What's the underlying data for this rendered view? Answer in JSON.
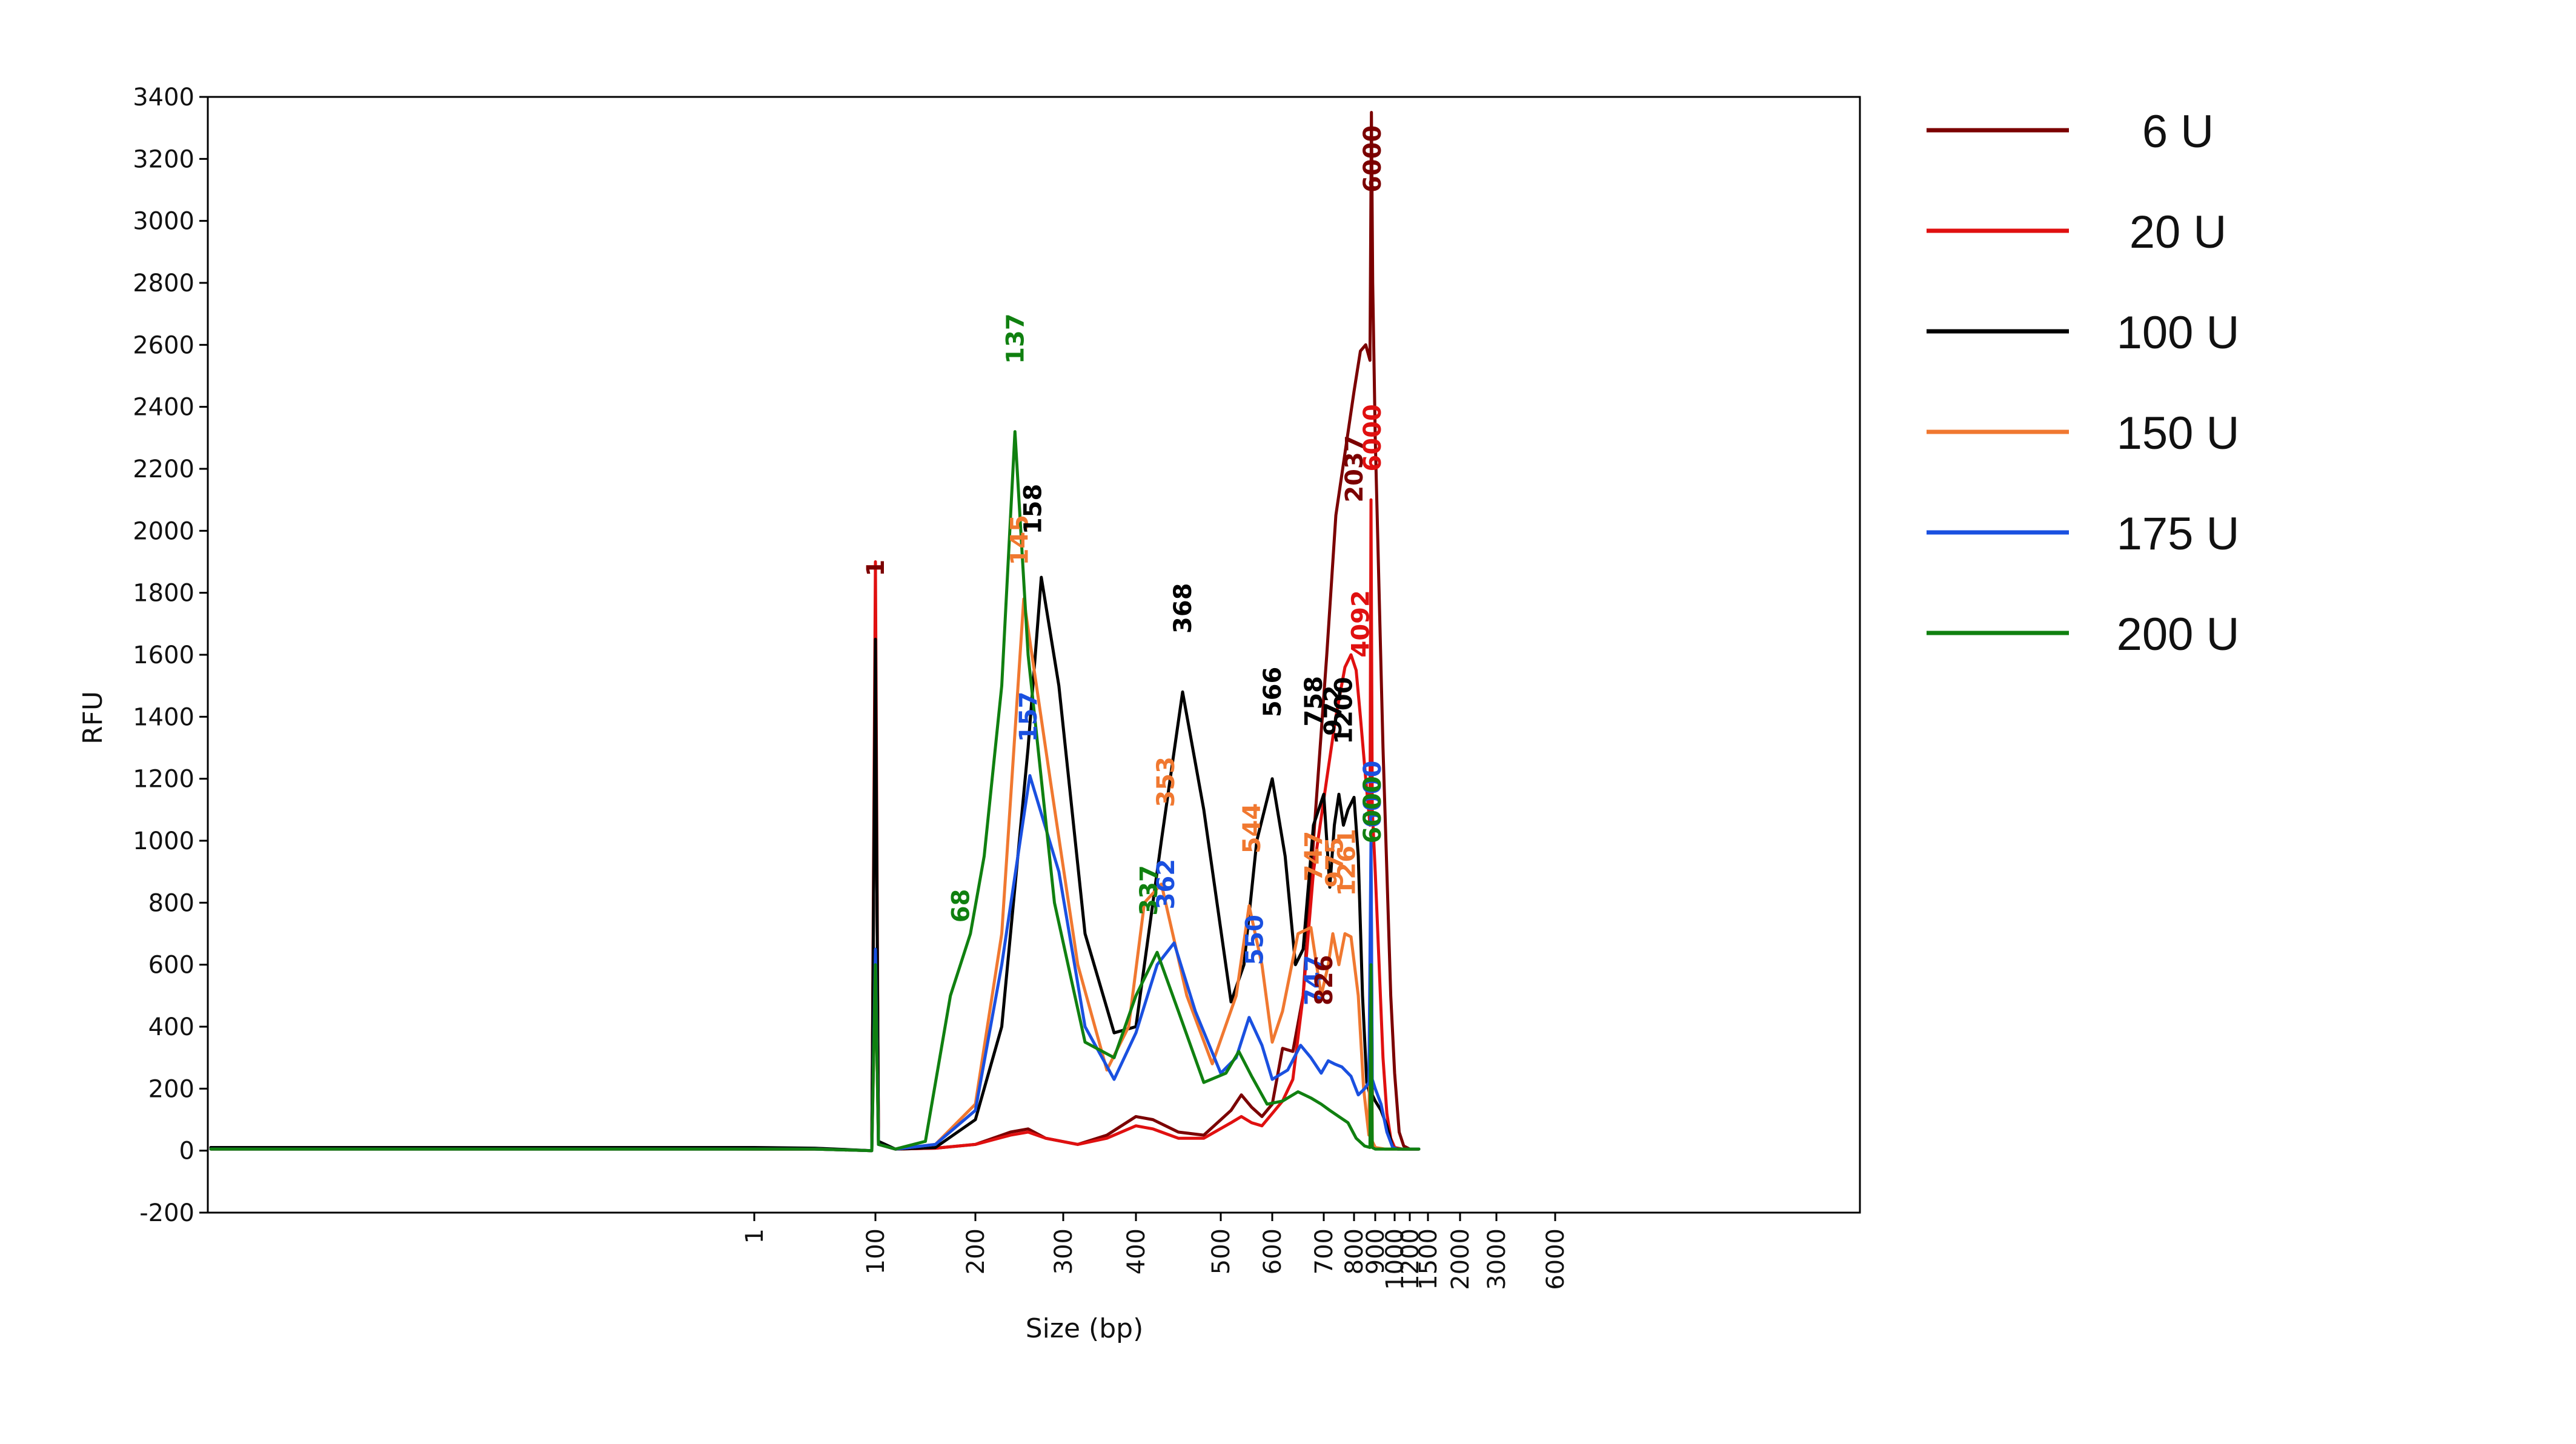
{
  "chart_data": {
    "type": "line",
    "title": "",
    "xlabel": "Size (bp)",
    "ylabel": "RFU",
    "ylim": [
      -200,
      3400
    ],
    "yticks": [
      -200,
      0,
      200,
      400,
      600,
      800,
      1000,
      1200,
      1400,
      1600,
      1800,
      2000,
      2200,
      2400,
      2600,
      2800,
      3000,
      3200,
      3400
    ],
    "xtick_labels": [
      "1",
      "100",
      "200",
      "300",
      "400",
      "500",
      "600",
      "700",
      "800",
      "900",
      "1000",
      "1200",
      "1500",
      "2000",
      "3000",
      "6000"
    ],
    "grid": false,
    "legend_position": "right",
    "series": [
      {
        "name": "6 U",
        "color": "#7b0000",
        "points": [
          [
            -0.05,
            10
          ],
          [
            0.0,
            5
          ],
          [
            0.5,
            5
          ],
          [
            0.97,
            0
          ],
          [
            1.0,
            1650
          ],
          [
            1.03,
            20
          ],
          [
            1.2,
            5
          ],
          [
            1.6,
            8
          ],
          [
            2.0,
            20
          ],
          [
            2.4,
            60
          ],
          [
            2.6,
            70
          ],
          [
            2.8,
            40
          ],
          [
            3.2,
            20
          ],
          [
            3.6,
            50
          ],
          [
            4.0,
            110
          ],
          [
            4.2,
            100
          ],
          [
            4.5,
            60
          ],
          [
            4.8,
            50
          ],
          [
            5.2,
            130
          ],
          [
            5.4,
            180
          ],
          [
            5.6,
            140
          ],
          [
            5.8,
            110
          ],
          [
            6.0,
            150
          ],
          [
            6.2,
            330
          ],
          [
            6.4,
            320
          ],
          [
            6.6,
            500
          ],
          [
            6.8,
            1000
          ],
          [
            7.1,
            1600
          ],
          [
            7.4,
            2050
          ],
          [
            7.7,
            2250
          ],
          [
            8.0,
            2450
          ],
          [
            8.3,
            2580
          ],
          [
            8.55,
            2600
          ],
          [
            8.75,
            2550
          ],
          [
            8.82,
            3350
          ],
          [
            8.88,
            2800
          ],
          [
            9.0,
            2300
          ],
          [
            9.2,
            1800
          ],
          [
            9.4,
            1300
          ],
          [
            9.6,
            900
          ],
          [
            9.8,
            500
          ],
          [
            10.0,
            250
          ],
          [
            10.3,
            60
          ],
          [
            10.6,
            15
          ],
          [
            11.0,
            5
          ],
          [
            11.5,
            5
          ]
        ]
      },
      {
        "name": "20 U",
        "color": "#e01010",
        "points": [
          [
            -0.05,
            5
          ],
          [
            0.0,
            5
          ],
          [
            0.5,
            5
          ],
          [
            0.97,
            0
          ],
          [
            1.0,
            1900
          ],
          [
            1.03,
            20
          ],
          [
            1.2,
            5
          ],
          [
            1.6,
            8
          ],
          [
            2.0,
            20
          ],
          [
            2.4,
            50
          ],
          [
            2.6,
            60
          ],
          [
            2.8,
            40
          ],
          [
            3.2,
            20
          ],
          [
            3.6,
            40
          ],
          [
            4.0,
            80
          ],
          [
            4.2,
            70
          ],
          [
            4.5,
            40
          ],
          [
            4.8,
            40
          ],
          [
            5.2,
            90
          ],
          [
            5.4,
            110
          ],
          [
            5.6,
            90
          ],
          [
            5.8,
            80
          ],
          [
            6.0,
            120
          ],
          [
            6.2,
            160
          ],
          [
            6.4,
            230
          ],
          [
            6.6,
            500
          ],
          [
            6.8,
            900
          ],
          [
            7.1,
            1200
          ],
          [
            7.4,
            1400
          ],
          [
            7.7,
            1560
          ],
          [
            7.9,
            1600
          ],
          [
            8.1,
            1550
          ],
          [
            8.3,
            1400
          ],
          [
            8.55,
            1200
          ],
          [
            8.75,
            1050
          ],
          [
            8.8,
            2100
          ],
          [
            8.86,
            1100
          ],
          [
            9.0,
            900
          ],
          [
            9.2,
            600
          ],
          [
            9.4,
            300
          ],
          [
            9.6,
            120
          ],
          [
            9.8,
            40
          ],
          [
            10.0,
            10
          ],
          [
            10.5,
            5
          ],
          [
            11.5,
            5
          ]
        ]
      },
      {
        "name": "100 U",
        "color": "#000000",
        "points": [
          [
            -0.05,
            10
          ],
          [
            0.0,
            10
          ],
          [
            0.5,
            8
          ],
          [
            0.97,
            0
          ],
          [
            1.0,
            1650
          ],
          [
            1.03,
            30
          ],
          [
            1.2,
            5
          ],
          [
            1.6,
            10
          ],
          [
            2.0,
            100
          ],
          [
            2.3,
            400
          ],
          [
            2.6,
            1300
          ],
          [
            2.75,
            1850
          ],
          [
            2.95,
            1500
          ],
          [
            3.3,
            700
          ],
          [
            3.7,
            380
          ],
          [
            4.0,
            400
          ],
          [
            4.3,
            1000
          ],
          [
            4.55,
            1480
          ],
          [
            4.8,
            1100
          ],
          [
            5.2,
            480
          ],
          [
            5.45,
            600
          ],
          [
            5.7,
            1000
          ],
          [
            6.0,
            1200
          ],
          [
            6.25,
            950
          ],
          [
            6.45,
            600
          ],
          [
            6.6,
            650
          ],
          [
            6.8,
            1050
          ],
          [
            7.0,
            1150
          ],
          [
            7.2,
            850
          ],
          [
            7.35,
            1050
          ],
          [
            7.5,
            1150
          ],
          [
            7.65,
            1050
          ],
          [
            7.8,
            1100
          ],
          [
            8.0,
            1140
          ],
          [
            8.2,
            950
          ],
          [
            8.4,
            500
          ],
          [
            8.6,
            220
          ],
          [
            8.75,
            180
          ],
          [
            8.8,
            950
          ],
          [
            8.86,
            180
          ],
          [
            9.0,
            160
          ],
          [
            9.3,
            130
          ],
          [
            9.6,
            80
          ],
          [
            9.9,
            10
          ],
          [
            10.2,
            5
          ],
          [
            11.5,
            5
          ]
        ]
      },
      {
        "name": "150 U",
        "color": "#f07830",
        "points": [
          [
            -0.05,
            5
          ],
          [
            0.0,
            5
          ],
          [
            0.5,
            5
          ],
          [
            0.97,
            0
          ],
          [
            1.0,
            600
          ],
          [
            1.03,
            20
          ],
          [
            1.2,
            5
          ],
          [
            1.6,
            20
          ],
          [
            2.0,
            150
          ],
          [
            2.3,
            700
          ],
          [
            2.55,
            1780
          ],
          [
            2.85,
            1200
          ],
          [
            3.2,
            600
          ],
          [
            3.6,
            260
          ],
          [
            3.9,
            400
          ],
          [
            4.1,
            800
          ],
          [
            4.3,
            860
          ],
          [
            4.6,
            500
          ],
          [
            4.9,
            280
          ],
          [
            5.3,
            500
          ],
          [
            5.55,
            790
          ],
          [
            5.8,
            600
          ],
          [
            6.0,
            350
          ],
          [
            6.2,
            450
          ],
          [
            6.5,
            700
          ],
          [
            6.75,
            720
          ],
          [
            6.95,
            500
          ],
          [
            7.15,
            600
          ],
          [
            7.3,
            700
          ],
          [
            7.5,
            600
          ],
          [
            7.7,
            700
          ],
          [
            7.9,
            690
          ],
          [
            8.2,
            500
          ],
          [
            8.45,
            200
          ],
          [
            8.7,
            50
          ],
          [
            8.8,
            700
          ],
          [
            8.86,
            30
          ],
          [
            9.0,
            10
          ],
          [
            9.5,
            5
          ],
          [
            11.5,
            5
          ]
        ]
      },
      {
        "name": "175 U",
        "color": "#1a50e0",
        "points": [
          [
            -0.05,
            5
          ],
          [
            0.0,
            5
          ],
          [
            0.5,
            5
          ],
          [
            0.97,
            0
          ],
          [
            1.0,
            650
          ],
          [
            1.03,
            20
          ],
          [
            1.2,
            5
          ],
          [
            1.6,
            20
          ],
          [
            2.0,
            130
          ],
          [
            2.3,
            600
          ],
          [
            2.62,
            1210
          ],
          [
            2.95,
            900
          ],
          [
            3.3,
            400
          ],
          [
            3.7,
            230
          ],
          [
            4.0,
            380
          ],
          [
            4.25,
            600
          ],
          [
            4.45,
            670
          ],
          [
            4.7,
            450
          ],
          [
            5.0,
            250
          ],
          [
            5.3,
            300
          ],
          [
            5.55,
            430
          ],
          [
            5.8,
            340
          ],
          [
            6.0,
            230
          ],
          [
            6.3,
            260
          ],
          [
            6.55,
            340
          ],
          [
            6.75,
            300
          ],
          [
            6.95,
            250
          ],
          [
            7.15,
            290
          ],
          [
            7.35,
            280
          ],
          [
            7.6,
            270
          ],
          [
            7.9,
            240
          ],
          [
            8.2,
            180
          ],
          [
            8.5,
            200
          ],
          [
            8.7,
            220
          ],
          [
            8.8,
            1000
          ],
          [
            8.86,
            230
          ],
          [
            9.0,
            200
          ],
          [
            9.3,
            150
          ],
          [
            9.6,
            60
          ],
          [
            9.9,
            10
          ],
          [
            10.2,
            5
          ],
          [
            11.5,
            5
          ]
        ]
      },
      {
        "name": "200 U",
        "color": "#108010",
        "points": [
          [
            -0.05,
            5
          ],
          [
            0.0,
            5
          ],
          [
            0.5,
            5
          ],
          [
            0.97,
            0
          ],
          [
            1.0,
            600
          ],
          [
            1.03,
            20
          ],
          [
            1.2,
            5
          ],
          [
            1.5,
            30
          ],
          [
            1.75,
            500
          ],
          [
            1.95,
            700
          ],
          [
            2.1,
            950
          ],
          [
            2.3,
            1500
          ],
          [
            2.45,
            2320
          ],
          [
            2.6,
            1600
          ],
          [
            2.9,
            800
          ],
          [
            3.3,
            350
          ],
          [
            3.7,
            300
          ],
          [
            4.0,
            500
          ],
          [
            4.25,
            640
          ],
          [
            4.5,
            450
          ],
          [
            4.8,
            220
          ],
          [
            5.1,
            250
          ],
          [
            5.35,
            320
          ],
          [
            5.6,
            240
          ],
          [
            5.9,
            150
          ],
          [
            6.2,
            160
          ],
          [
            6.5,
            190
          ],
          [
            6.75,
            170
          ],
          [
            6.95,
            150
          ],
          [
            7.2,
            130
          ],
          [
            7.5,
            110
          ],
          [
            7.8,
            90
          ],
          [
            8.1,
            40
          ],
          [
            8.5,
            15
          ],
          [
            8.75,
            10
          ],
          [
            8.8,
            600
          ],
          [
            8.86,
            10
          ],
          [
            9.0,
            5
          ],
          [
            11.5,
            5
          ]
        ]
      }
    ],
    "peak_labels": [
      {
        "text": "1",
        "x": 1.0,
        "y": 1880,
        "color": "#e01010"
      },
      {
        "text": "1",
        "x": 1.0,
        "y": 1880,
        "color": "#7b0000"
      },
      {
        "text": "68",
        "x": 1.85,
        "y": 790,
        "color": "#108010"
      },
      {
        "text": "137",
        "x": 2.45,
        "y": 2620,
        "color": "#108010"
      },
      {
        "text": "145",
        "x": 2.5,
        "y": 1970,
        "color": "#f07830"
      },
      {
        "text": "158",
        "x": 2.65,
        "y": 2070,
        "color": "#000000"
      },
      {
        "text": "157",
        "x": 2.6,
        "y": 1400,
        "color": "#1a50e0"
      },
      {
        "text": "368",
        "x": 4.55,
        "y": 1750,
        "color": "#000000"
      },
      {
        "text": "353",
        "x": 4.35,
        "y": 1190,
        "color": "#f07830"
      },
      {
        "text": "337",
        "x": 4.15,
        "y": 840,
        "color": "#108010"
      },
      {
        "text": "362",
        "x": 4.35,
        "y": 860,
        "color": "#1a50e0"
      },
      {
        "text": "566",
        "x": 6.0,
        "y": 1480,
        "color": "#000000"
      },
      {
        "text": "544",
        "x": 5.6,
        "y": 1040,
        "color": "#f07830"
      },
      {
        "text": "550",
        "x": 5.65,
        "y": 680,
        "color": "#1a50e0"
      },
      {
        "text": "758",
        "x": 6.8,
        "y": 1450,
        "color": "#000000"
      },
      {
        "text": "747",
        "x": 6.8,
        "y": 950,
        "color": "#f07830"
      },
      {
        "text": "747",
        "x": 6.8,
        "y": 550,
        "color": "#1a50e0"
      },
      {
        "text": "826",
        "x": 7.0,
        "y": 550,
        "color": "#7b0000"
      },
      {
        "text": "972",
        "x": 7.3,
        "y": 1420,
        "color": "#000000"
      },
      {
        "text": "975",
        "x": 7.35,
        "y": 930,
        "color": "#f07830"
      },
      {
        "text": "1200",
        "x": 7.65,
        "y": 1420,
        "color": "#000000"
      },
      {
        "text": "1261",
        "x": 7.75,
        "y": 930,
        "color": "#f07830"
      },
      {
        "text": "2037",
        "x": 8.0,
        "y": 2200,
        "color": "#7b0000"
      },
      {
        "text": "4092",
        "x": 8.3,
        "y": 1700,
        "color": "#e01010"
      },
      {
        "text": "6000",
        "x": 8.85,
        "y": 3200,
        "color": "#7b0000"
      },
      {
        "text": "6000",
        "x": 8.85,
        "y": 2300,
        "color": "#e01010"
      },
      {
        "text": "6000",
        "x": 8.85,
        "y": 1150,
        "color": "#1a50e0"
      },
      {
        "text": "6000",
        "x": 8.85,
        "y": 1100,
        "color": "#108010"
      }
    ]
  },
  "legend": [
    {
      "label": "6 U",
      "color": "#7b0000"
    },
    {
      "label": "20 U",
      "color": "#e01010"
    },
    {
      "label": "100 U",
      "color": "#000000"
    },
    {
      "label": "150 U",
      "color": "#f07830"
    },
    {
      "label": "175 U",
      "color": "#1a50e0"
    },
    {
      "label": "200 U",
      "color": "#108010"
    }
  ]
}
